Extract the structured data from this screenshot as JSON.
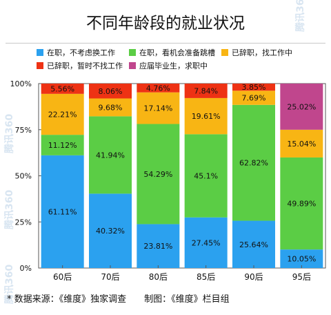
{
  "title": "不同年龄段的就业状况",
  "footer": "* 数据来源：《维度》独家调查　　制图：《维度》栏目组",
  "watermark": "腾讯360",
  "chart_data": {
    "type": "bar",
    "stacked": true,
    "categories": [
      "60后",
      "70后",
      "80后",
      "85后",
      "90后",
      "95后"
    ],
    "ylim": [
      0,
      100
    ],
    "yticks": [
      "0%",
      "25%",
      "50%",
      "75%",
      "100%"
    ],
    "ytick_values": [
      0,
      25,
      50,
      75,
      100
    ],
    "legend_position": "top",
    "series": [
      {
        "name": "在职，不考虑换工作",
        "color": "#2ba1ef",
        "values": [
          61.11,
          40.32,
          23.81,
          27.45,
          25.64,
          10.05
        ],
        "labels": [
          "61.11%",
          "40.32%",
          "23.81%",
          "27.45%",
          "25.64%",
          "10.05%"
        ]
      },
      {
        "name": "在职，看机会准备跳槽",
        "color": "#5bcd45",
        "values": [
          11.12,
          41.94,
          54.29,
          45.1,
          62.82,
          49.89
        ],
        "labels": [
          "11.12%",
          "41.94%",
          "54.29%",
          "45.1%",
          "62.82%",
          "49.89%"
        ]
      },
      {
        "name": "已辞职，找工作中",
        "color": "#f8b514",
        "values": [
          22.21,
          9.68,
          17.14,
          19.61,
          7.69,
          15.04
        ],
        "labels": [
          "22.21%",
          "9.68%",
          "17.14%",
          "19.61%",
          "7.69%",
          "15.04%"
        ]
      },
      {
        "name": "已辞职，暂时不找工作",
        "color": "#ee3214",
        "values": [
          5.56,
          8.06,
          4.76,
          7.84,
          3.85,
          0
        ],
        "labels": [
          "5.56%",
          "8.06%",
          "4.76%",
          "7.84%",
          "3.85%",
          ""
        ]
      },
      {
        "name": "应届毕业生，求职中",
        "color": "#c0468d",
        "values": [
          0,
          0,
          0,
          0,
          0,
          25.02
        ],
        "labels": [
          "",
          "",
          "",
          "",
          "",
          "25.02%"
        ]
      }
    ]
  }
}
